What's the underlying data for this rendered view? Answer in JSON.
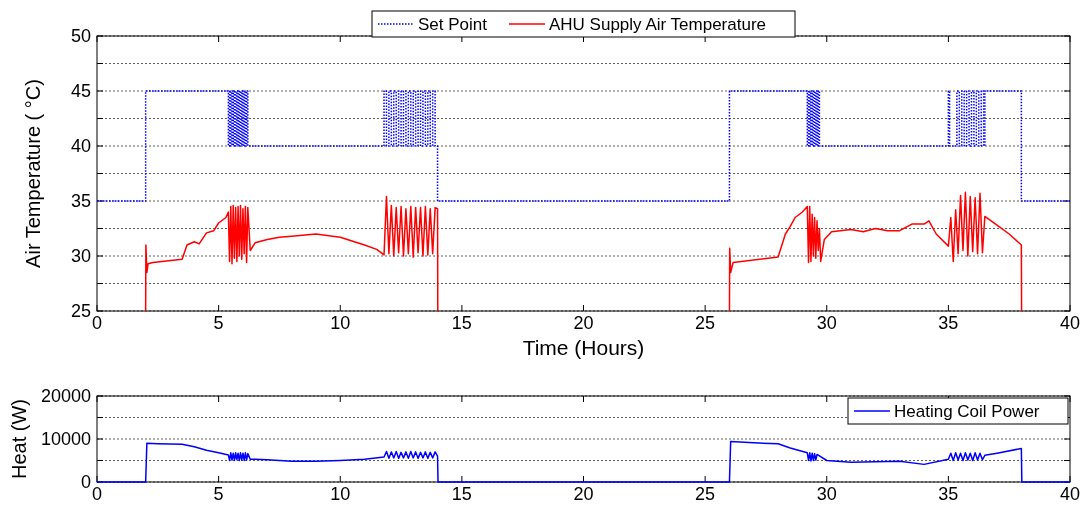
{
  "chart_data": [
    {
      "type": "line",
      "xlabel": "Time (Hours)",
      "ylabel": "Air Temperature ( °C)",
      "xlim": [
        0,
        40
      ],
      "xticks": [
        0,
        5,
        10,
        15,
        20,
        25,
        30,
        35,
        40
      ],
      "ylim": [
        25,
        50
      ],
      "yticks": [
        25,
        {
          "value": 27.5,
          "label": null
        },
        30,
        {
          "value": 32.5,
          "label": null
        },
        35,
        {
          "value": 37.5,
          "label": null
        },
        40,
        {
          "value": 42.5,
          "label": null
        },
        45,
        {
          "value": 47.5,
          "label": null
        },
        50
      ],
      "grid": "y",
      "legend": "top",
      "series": [
        {
          "name": "Set Point",
          "type": "step",
          "color": "#0000ff",
          "line_style": "dotted",
          "x": [
            0,
            2,
            5.4,
            5.45,
            5.5,
            5.55,
            5.6,
            5.65,
            5.7,
            5.75,
            5.8,
            5.85,
            5.9,
            5.95,
            6.0,
            6.05,
            6.1,
            6.15,
            6.2,
            11.8,
            11.9,
            12.0,
            12.1,
            12.2,
            12.3,
            12.4,
            12.5,
            12.6,
            12.7,
            12.8,
            12.9,
            13.0,
            13.1,
            13.2,
            13.3,
            13.4,
            13.5,
            13.6,
            13.7,
            13.8,
            13.9,
            14.0,
            26,
            29.2,
            29.25,
            29.3,
            29.35,
            29.4,
            29.45,
            29.5,
            29.55,
            29.6,
            29.65,
            29.7,
            35.0,
            35.05,
            35.35,
            35.45,
            35.55,
            35.65,
            35.75,
            35.85,
            35.95,
            36.05,
            36.15,
            36.25,
            36.35,
            36.45,
            36.5,
            38,
            40
          ],
          "values": [
            35,
            45,
            40,
            45,
            40,
            45,
            40,
            45,
            40,
            45,
            40,
            45,
            40,
            45,
            40,
            45,
            40,
            45,
            40,
            45,
            40,
            45,
            40,
            45,
            40,
            45,
            40,
            45,
            40,
            45,
            40,
            45,
            40,
            45,
            40,
            45,
            40,
            45,
            40,
            45,
            40,
            35,
            45,
            40,
            45,
            40,
            45,
            40,
            45,
            40,
            45,
            40,
            45,
            40,
            45,
            40,
            45,
            40,
            45,
            40,
            45,
            40,
            45,
            40,
            45,
            40,
            45,
            40,
            45,
            35,
            35
          ]
        },
        {
          "name": "AHU Supply Air Temperature",
          "color": "#ff0000",
          "line_style": "solid",
          "x": [
            2,
            2.01,
            2.05,
            2.1,
            2.3,
            3.5,
            3.7,
            4,
            4.2,
            4.5,
            4.8,
            5.0,
            5.3,
            5.4,
            5.45,
            5.5,
            5.55,
            5.6,
            5.65,
            5.7,
            5.75,
            5.8,
            5.85,
            5.9,
            5.95,
            6.0,
            6.05,
            6.1,
            6.15,
            6.2,
            6.3,
            6.5,
            7,
            7.5,
            8,
            9,
            10,
            11,
            11.5,
            11.8,
            11.9,
            12.0,
            12.1,
            12.2,
            12.3,
            12.4,
            12.5,
            12.6,
            12.7,
            12.8,
            12.9,
            13.0,
            13.1,
            13.2,
            13.3,
            13.4,
            13.5,
            13.6,
            13.7,
            13.8,
            13.9,
            14.0,
            14.01,
            20,
            26,
            26.01,
            26.05,
            26.15,
            28,
            28.3,
            28.5,
            28.7,
            29,
            29.2,
            29.25,
            29.3,
            29.35,
            29.4,
            29.45,
            29.5,
            29.55,
            29.6,
            29.65,
            29.7,
            29.75,
            29.9,
            30.2,
            31,
            31.5,
            32,
            32.5,
            33,
            33.5,
            34,
            34.2,
            34.5,
            35,
            35.1,
            35.2,
            35.3,
            35.4,
            35.5,
            35.6,
            35.7,
            35.8,
            35.9,
            36.0,
            36.1,
            36.2,
            36.3,
            36.4,
            36.5,
            37,
            37.5,
            37.9,
            38.0,
            38.01
          ],
          "values": [
            25,
            31,
            28.5,
            29.3,
            29.4,
            29.7,
            31,
            31.3,
            31.1,
            32.1,
            32.3,
            33,
            33.5,
            34,
            29.5,
            34.5,
            29.3,
            34.6,
            29.8,
            34.4,
            29.5,
            34.5,
            30,
            34.6,
            29.7,
            34.3,
            30.2,
            34.5,
            29.4,
            34.4,
            30.5,
            31.2,
            31.5,
            31.7,
            31.8,
            32,
            31.7,
            31,
            30.6,
            30.1,
            35.4,
            30.2,
            34.6,
            30,
            34.4,
            30.3,
            34.5,
            30,
            34.3,
            30.2,
            34.5,
            29.9,
            34.4,
            30.3,
            34.4,
            30,
            34.5,
            30.1,
            34.3,
            30.2,
            34.4,
            34.3,
            25,
            null,
            25,
            30.7,
            28.5,
            29.4,
            29.9,
            32,
            32.7,
            33.5,
            34,
            34.5,
            29.4,
            34.5,
            29.5,
            33.8,
            30,
            33.5,
            29.8,
            33.2,
            30.5,
            32.5,
            29.5,
            31.5,
            32.2,
            32.4,
            32.2,
            32.5,
            32.3,
            32.3,
            32.9,
            32.9,
            33.2,
            32,
            30.9,
            33.5,
            29.5,
            34.2,
            30.2,
            35.5,
            30.5,
            35.8,
            30,
            35.4,
            30.4,
            35.3,
            30.2,
            35.7,
            30.3,
            33.6,
            32.8,
            32,
            31.2,
            31,
            25
          ]
        }
      ]
    },
    {
      "type": "line",
      "ylabel": "Heat (W)",
      "xlim": [
        0,
        40
      ],
      "xticks": [
        0,
        5,
        10,
        15,
        20,
        25,
        30,
        35,
        40
      ],
      "ylim": [
        0,
        20000
      ],
      "yticks": [
        0,
        {
          "value": 5000,
          "label": null
        },
        10000,
        {
          "value": 15000,
          "label": null
        },
        20000
      ],
      "grid": "y",
      "legend": "top right",
      "series": [
        {
          "name": "Heating Coil Power",
          "color": "#0000ff",
          "line_style": "solid",
          "x": [
            0,
            2,
            2.05,
            2.5,
            3.5,
            4,
            4.5,
            5,
            5.4,
            5.45,
            5.5,
            5.55,
            5.6,
            5.65,
            5.7,
            5.75,
            5.8,
            5.85,
            5.9,
            5.95,
            6.0,
            6.05,
            6.1,
            6.15,
            6.2,
            6.3,
            6.5,
            7,
            8,
            9,
            10,
            11,
            11.8,
            11.9,
            12.0,
            12.1,
            12.2,
            12.3,
            12.4,
            12.5,
            12.6,
            12.7,
            12.8,
            12.9,
            13.0,
            13.1,
            13.2,
            13.3,
            13.4,
            13.5,
            13.6,
            13.7,
            13.8,
            13.9,
            14,
            14.02,
            26,
            26.05,
            27,
            28,
            28.5,
            29.2,
            29.25,
            29.3,
            29.35,
            29.4,
            29.45,
            29.5,
            29.55,
            29.6,
            30,
            31,
            32,
            33,
            34,
            35,
            35.1,
            35.2,
            35.3,
            35.4,
            35.5,
            35.6,
            35.7,
            35.8,
            35.9,
            36.0,
            36.1,
            36.2,
            36.3,
            36.4,
            36.5,
            37,
            38,
            38.02,
            40
          ],
          "values": [
            0,
            0,
            9000,
            8900,
            8800,
            8200,
            7400,
            6800,
            6300,
            5000,
            6800,
            5100,
            6700,
            5000,
            6800,
            5200,
            6700,
            5000,
            6800,
            5100,
            6700,
            5000,
            6800,
            5100,
            6600,
            5300,
            5300,
            5200,
            4800,
            4800,
            5000,
            5300,
            5800,
            7100,
            5500,
            7000,
            5600,
            7100,
            5500,
            6900,
            5600,
            7000,
            5500,
            7100,
            5600,
            7000,
            5500,
            6900,
            5600,
            7000,
            5500,
            6900,
            5600,
            7000,
            6000,
            0,
            0,
            9400,
            9100,
            8900,
            7900,
            6800,
            5000,
            6800,
            4900,
            6700,
            5000,
            6600,
            5100,
            6400,
            5000,
            4600,
            4700,
            4800,
            4100,
            5300,
            6700,
            5000,
            6800,
            5100,
            6700,
            5000,
            6800,
            5100,
            6700,
            5000,
            6800,
            5100,
            6700,
            5200,
            6200,
            6700,
            7800,
            0,
            0
          ]
        }
      ]
    }
  ]
}
